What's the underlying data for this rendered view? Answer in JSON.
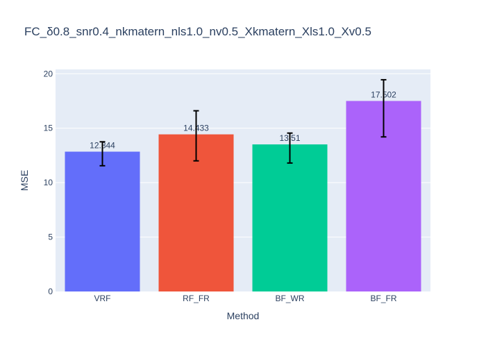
{
  "chart_data": {
    "type": "bar",
    "title": "FC_δ0.8_snr0.4_nkmatern_nls1.0_nv0.5_Xkmatern_Xls1.0_Xv0.5",
    "xlabel": "Method",
    "ylabel": "MSE",
    "categories": [
      "VRF",
      "RF_FR",
      "BF_WR",
      "BF_FR"
    ],
    "values": [
      12.844,
      14.433,
      13.51,
      17.502
    ],
    "value_labels": [
      "12.844",
      "14.433",
      "13.51",
      "17.502"
    ],
    "error_low": [
      11.55,
      12.0,
      11.8,
      14.2
    ],
    "error_high": [
      13.75,
      16.6,
      14.55,
      19.45
    ],
    "colors": [
      "#636efa",
      "#ef553b",
      "#00cc96",
      "#ab63fa"
    ],
    "ylim": [
      0,
      20.4
    ],
    "yticks": [
      0,
      5,
      10,
      15,
      20
    ],
    "grid": true,
    "plot_background": "#e5ecf6"
  }
}
